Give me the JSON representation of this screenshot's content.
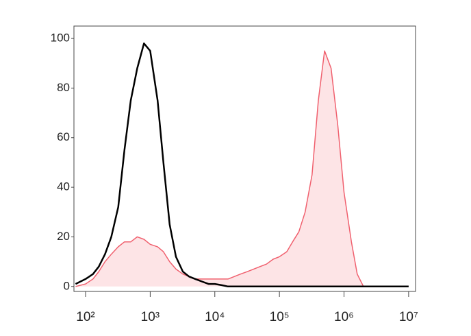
{
  "chart_data": {
    "type": "area",
    "xscale": "log",
    "x": [
      70,
      100,
      130,
      160,
      200,
      250,
      320,
      400,
      500,
      630,
      800,
      1000,
      1300,
      1600,
      2000,
      2500,
      3200,
      4000,
      5000,
      6300,
      8000,
      10000,
      13000,
      16000,
      20000,
      25000,
      32000,
      40000,
      50000,
      63000,
      80000,
      100000,
      130000,
      160000,
      200000,
      250000,
      320000,
      400000,
      500000,
      630000,
      800000,
      1000000,
      1300000,
      1600000,
      2000000,
      2500000,
      3200000,
      4000000,
      5000000,
      6300000,
      8000000,
      10000000
    ],
    "series": [
      {
        "color": "#f0606e",
        "fill": "#fde4e6",
        "values": [
          0,
          1,
          3,
          6,
          10,
          13,
          16,
          18,
          18,
          20,
          19,
          17,
          16,
          14,
          10,
          7,
          5,
          4,
          3,
          3,
          3,
          3,
          3,
          3,
          4,
          5,
          6,
          7,
          8,
          9,
          11,
          12,
          14,
          18,
          22,
          30,
          45,
          75,
          95,
          88,
          65,
          38,
          18,
          5,
          0,
          null,
          null,
          null,
          null,
          null,
          null,
          null
        ]
      },
      {
        "color": "#000000",
        "values": [
          1,
          3,
          5,
          8,
          13,
          20,
          32,
          55,
          75,
          88,
          98,
          95,
          75,
          50,
          25,
          12,
          6,
          4,
          3,
          2,
          1,
          1,
          0.5,
          0,
          0,
          0,
          0,
          0,
          0,
          0,
          0,
          0,
          0,
          0,
          0,
          0,
          0,
          0,
          0,
          0,
          0,
          0,
          0,
          0,
          0,
          0,
          0,
          0,
          0,
          0,
          0,
          0
        ]
      }
    ],
    "xlim": [
      66,
      12800000
    ],
    "xticks": [
      {
        "value": 100,
        "label": "10²"
      },
      {
        "value": 1000,
        "label": "10³"
      },
      {
        "value": 10000,
        "label": "10⁴"
      },
      {
        "value": 100000,
        "label": "10⁵"
      },
      {
        "value": 1000000,
        "label": "10⁶"
      },
      {
        "value": 10000000,
        "label": "10⁷"
      }
    ],
    "ylim": [
      -2,
      105
    ],
    "yticks": [
      0,
      20,
      40,
      60,
      80,
      100
    ]
  }
}
